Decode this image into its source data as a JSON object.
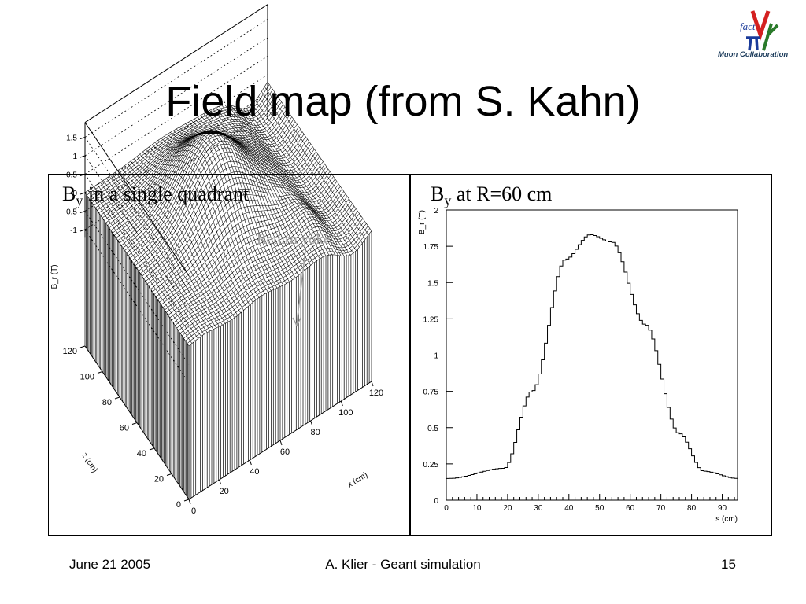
{
  "slide": {
    "title": "Field map (from S. Kahn)",
    "footer_date": "June 21 2005",
    "footer_center": "A. Klier - Geant simulation",
    "footer_page": "15"
  },
  "logo": {
    "top_text": "fact",
    "bottom_text": "Muon Collaboration",
    "accent_colors": [
      "#d42020",
      "#2a7a2a",
      "#1a3a9a"
    ]
  },
  "panels": {
    "left": {
      "title_main": "B",
      "title_sub": "y",
      "title_rest": " in a single quadrant",
      "annotation": "Return yoke"
    },
    "right": {
      "title_main": "B",
      "title_sub": "y",
      "title_rest": " at R=60 cm"
    }
  },
  "chart_data": [
    {
      "type": "surface",
      "zlabel": "B_r (T)",
      "xlabel": "x (cm)",
      "ylabel": "z (cm)",
      "zticks": [
        "1.5",
        "1",
        "0.5",
        "0",
        "-0.5",
        "-1"
      ],
      "xticks": [
        "0",
        "20",
        "40",
        "60",
        "80",
        "100",
        "120"
      ],
      "yticks": [
        "120",
        "100",
        "80",
        "60",
        "40",
        "20",
        "0"
      ]
    },
    {
      "type": "histogram",
      "xlabel": "s (cm)",
      "ylabel": "B_r (T)",
      "xlim": [
        0,
        95
      ],
      "ylim": [
        0,
        2
      ],
      "xticks": [
        0,
        10,
        20,
        30,
        40,
        50,
        60,
        70,
        80,
        90
      ],
      "yticks": [
        0,
        0.25,
        0.5,
        0.75,
        1,
        1.25,
        1.5,
        1.75,
        2
      ],
      "ytick_labels": [
        "0",
        "0.25",
        "0.5",
        "0.75",
        "1",
        "1.25",
        "1.5",
        "1.75",
        "2"
      ],
      "peak": {
        "x": 47,
        "y": 1.83
      },
      "x": [
        1,
        19,
        28,
        39,
        47,
        54,
        65,
        76,
        84,
        95
      ],
      "values": [
        0.15,
        0.22,
        0.75,
        1.66,
        1.83,
        1.78,
        1.21,
        0.46,
        0.2,
        0.15
      ],
      "bin_width": 1
    }
  ]
}
